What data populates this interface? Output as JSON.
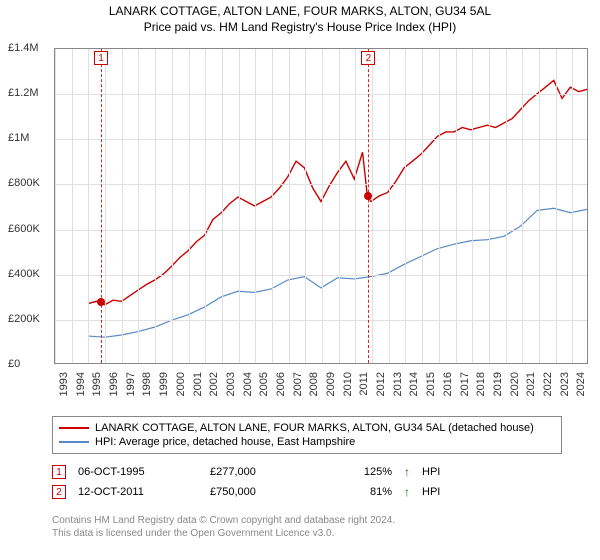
{
  "title": "LANARK COTTAGE, ALTON LANE, FOUR MARKS, ALTON, GU34 5AL",
  "subtitle": "Price paid vs. HM Land Registry's House Price Index (HPI)",
  "chart": {
    "type": "line",
    "x_start": 1993,
    "x_end": 2025,
    "y_min": 0,
    "y_max": 1400000,
    "y_step": 200000,
    "y_tick_labels": [
      "£0",
      "£200K",
      "£400K",
      "£600K",
      "£800K",
      "£1M",
      "£1.2M",
      "£1.4M"
    ],
    "x_ticks": [
      1993,
      1994,
      1995,
      1996,
      1997,
      1998,
      1999,
      2000,
      2001,
      2002,
      2003,
      2004,
      2005,
      2006,
      2007,
      2008,
      2009,
      2010,
      2011,
      2012,
      2013,
      2014,
      2015,
      2016,
      2017,
      2018,
      2019,
      2020,
      2021,
      2022,
      2023,
      2024
    ],
    "grid_color": "#e0e0e0",
    "border_color": "#888888",
    "background_color": "#ffffff",
    "series": [
      {
        "name": "property",
        "color": "#cc0000",
        "width": 1.4,
        "label": "LANARK COTTAGE, ALTON LANE, FOUR MARKS, ALTON, GU34 5AL (detached house)",
        "data": [
          [
            1995.0,
            265000
          ],
          [
            1995.5,
            275000
          ],
          [
            1996.0,
            260000
          ],
          [
            1996.5,
            280000
          ],
          [
            1997.0,
            275000
          ],
          [
            1997.5,
            300000
          ],
          [
            1998.0,
            325000
          ],
          [
            1998.5,
            350000
          ],
          [
            1999.0,
            370000
          ],
          [
            1999.5,
            395000
          ],
          [
            2000.0,
            430000
          ],
          [
            2000.5,
            470000
          ],
          [
            2001.0,
            500000
          ],
          [
            2001.5,
            540000
          ],
          [
            2002.0,
            570000
          ],
          [
            2002.5,
            640000
          ],
          [
            2003.0,
            670000
          ],
          [
            2003.5,
            710000
          ],
          [
            2004.0,
            740000
          ],
          [
            2004.5,
            720000
          ],
          [
            2005.0,
            700000
          ],
          [
            2005.5,
            720000
          ],
          [
            2006.0,
            740000
          ],
          [
            2006.5,
            780000
          ],
          [
            2007.0,
            830000
          ],
          [
            2007.5,
            900000
          ],
          [
            2008.0,
            870000
          ],
          [
            2008.5,
            780000
          ],
          [
            2009.0,
            720000
          ],
          [
            2009.5,
            790000
          ],
          [
            2010.0,
            850000
          ],
          [
            2010.5,
            900000
          ],
          [
            2011.0,
            820000
          ],
          [
            2011.5,
            940000
          ],
          [
            2011.78,
            750000
          ],
          [
            2012.0,
            720000
          ],
          [
            2012.5,
            745000
          ],
          [
            2013.0,
            760000
          ],
          [
            2013.5,
            810000
          ],
          [
            2014.0,
            870000
          ],
          [
            2014.5,
            900000
          ],
          [
            2015.0,
            930000
          ],
          [
            2015.5,
            970000
          ],
          [
            2016.0,
            1010000
          ],
          [
            2016.5,
            1030000
          ],
          [
            2017.0,
            1030000
          ],
          [
            2017.5,
            1050000
          ],
          [
            2018.0,
            1040000
          ],
          [
            2018.5,
            1050000
          ],
          [
            2019.0,
            1060000
          ],
          [
            2019.5,
            1050000
          ],
          [
            2020.0,
            1070000
          ],
          [
            2020.5,
            1090000
          ],
          [
            2021.0,
            1130000
          ],
          [
            2021.5,
            1170000
          ],
          [
            2022.0,
            1200000
          ],
          [
            2022.5,
            1230000
          ],
          [
            2023.0,
            1260000
          ],
          [
            2023.5,
            1180000
          ],
          [
            2024.0,
            1230000
          ],
          [
            2024.5,
            1210000
          ],
          [
            2025.0,
            1220000
          ]
        ]
      },
      {
        "name": "hpi",
        "color": "#5a8ac6",
        "width": 1.2,
        "label": "HPI: Average price, detached house, East Hampshire",
        "data": [
          [
            1995.0,
            120000
          ],
          [
            1996.0,
            115000
          ],
          [
            1997.0,
            125000
          ],
          [
            1998.0,
            140000
          ],
          [
            1999.0,
            160000
          ],
          [
            2000.0,
            190000
          ],
          [
            2001.0,
            215000
          ],
          [
            2002.0,
            250000
          ],
          [
            2003.0,
            295000
          ],
          [
            2004.0,
            320000
          ],
          [
            2005.0,
            315000
          ],
          [
            2006.0,
            330000
          ],
          [
            2007.0,
            370000
          ],
          [
            2008.0,
            385000
          ],
          [
            2009.0,
            335000
          ],
          [
            2010.0,
            380000
          ],
          [
            2011.0,
            375000
          ],
          [
            2012.0,
            385000
          ],
          [
            2013.0,
            400000
          ],
          [
            2014.0,
            440000
          ],
          [
            2015.0,
            475000
          ],
          [
            2016.0,
            510000
          ],
          [
            2017.0,
            530000
          ],
          [
            2018.0,
            545000
          ],
          [
            2019.0,
            550000
          ],
          [
            2020.0,
            565000
          ],
          [
            2021.0,
            610000
          ],
          [
            2022.0,
            680000
          ],
          [
            2023.0,
            690000
          ],
          [
            2024.0,
            670000
          ],
          [
            2025.0,
            685000
          ]
        ]
      }
    ],
    "sale_markers": [
      {
        "n": "1",
        "x": 1995.76,
        "y": 277000,
        "dot_color": "#cc0000"
      },
      {
        "n": "2",
        "x": 2011.78,
        "y": 750000,
        "dot_color": "#cc0000"
      }
    ]
  },
  "sales": [
    {
      "n": "1",
      "date": "06-OCT-1995",
      "price": "£277,000",
      "pct": "125%",
      "arrow": "↑",
      "suffix": "HPI"
    },
    {
      "n": "2",
      "date": "12-OCT-2011",
      "price": "£750,000",
      "pct": "81%",
      "arrow": "↑",
      "suffix": "HPI"
    }
  ],
  "footer_line1": "Contains HM Land Registry data © Crown copyright and database right 2024.",
  "footer_line2": "This data is licensed under the Open Government Licence v3.0."
}
